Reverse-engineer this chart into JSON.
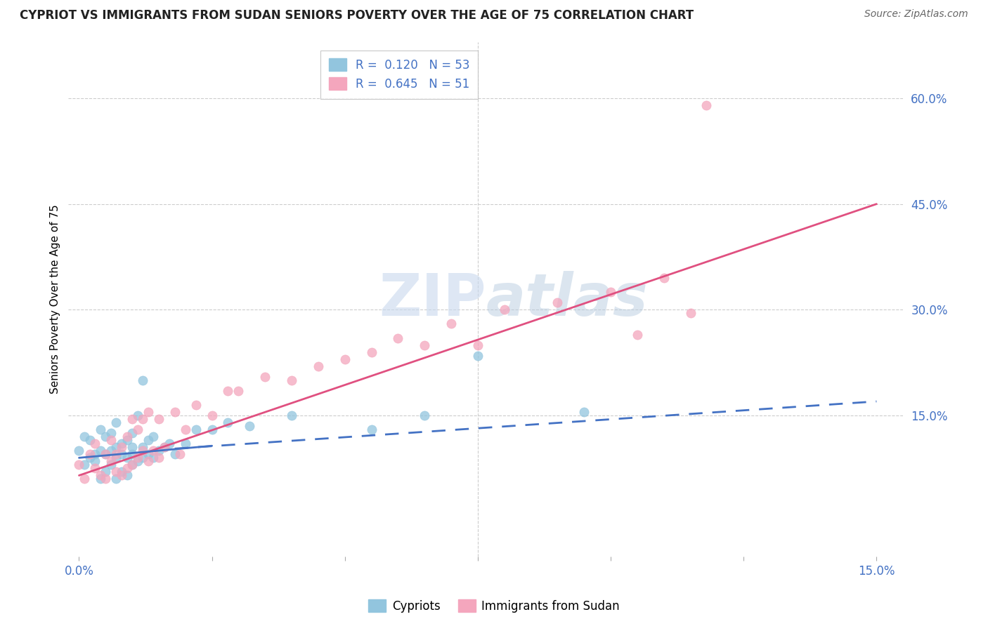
{
  "title": "CYPRIOT VS IMMIGRANTS FROM SUDAN SENIORS POVERTY OVER THE AGE OF 75 CORRELATION CHART",
  "source": "Source: ZipAtlas.com",
  "ylabel": "Seniors Poverty Over the Age of 75",
  "x_min": 0.0,
  "x_max": 0.15,
  "y_min": -0.05,
  "y_max": 0.68,
  "y_ticks_right": [
    0.15,
    0.3,
    0.45,
    0.6
  ],
  "y_tick_labels_right": [
    "15.0%",
    "30.0%",
    "45.0%",
    "60.0%"
  ],
  "x_tick_pos": [
    0.0,
    0.025,
    0.05,
    0.075,
    0.1,
    0.125,
    0.15
  ],
  "x_tick_labels": [
    "0.0%",
    "",
    "",
    "",
    "",
    "",
    "15.0%"
  ],
  "legend_r1": "R =  0.120   N = 53",
  "legend_r2": "R =  0.645   N = 51",
  "cypriot_color": "#92c5de",
  "sudan_color": "#f4a6bd",
  "trend_cypriot_color": "#4472C4",
  "trend_sudan_color": "#e05080",
  "watermark": "ZIPatlas",
  "grid_color": "#cccccc",
  "cypriot_scatter_x": [
    0.0,
    0.001,
    0.001,
    0.002,
    0.002,
    0.003,
    0.003,
    0.004,
    0.004,
    0.004,
    0.005,
    0.005,
    0.005,
    0.006,
    0.006,
    0.006,
    0.007,
    0.007,
    0.007,
    0.007,
    0.008,
    0.008,
    0.008,
    0.009,
    0.009,
    0.009,
    0.01,
    0.01,
    0.01,
    0.01,
    0.011,
    0.011,
    0.012,
    0.012,
    0.012,
    0.013,
    0.013,
    0.014,
    0.014,
    0.015,
    0.016,
    0.017,
    0.018,
    0.02,
    0.022,
    0.025,
    0.028,
    0.032,
    0.04,
    0.055,
    0.065,
    0.075,
    0.095
  ],
  "cypriot_scatter_y": [
    0.1,
    0.08,
    0.12,
    0.09,
    0.115,
    0.085,
    0.095,
    0.06,
    0.1,
    0.13,
    0.07,
    0.095,
    0.12,
    0.08,
    0.1,
    0.125,
    0.06,
    0.09,
    0.105,
    0.14,
    0.07,
    0.095,
    0.11,
    0.065,
    0.09,
    0.115,
    0.08,
    0.095,
    0.105,
    0.125,
    0.085,
    0.15,
    0.09,
    0.105,
    0.2,
    0.095,
    0.115,
    0.09,
    0.12,
    0.1,
    0.105,
    0.11,
    0.095,
    0.11,
    0.13,
    0.13,
    0.14,
    0.135,
    0.15,
    0.13,
    0.15,
    0.235,
    0.155
  ],
  "sudan_scatter_x": [
    0.0,
    0.001,
    0.002,
    0.003,
    0.003,
    0.004,
    0.005,
    0.005,
    0.006,
    0.006,
    0.007,
    0.007,
    0.008,
    0.008,
    0.009,
    0.009,
    0.01,
    0.01,
    0.011,
    0.011,
    0.012,
    0.012,
    0.013,
    0.013,
    0.014,
    0.015,
    0.015,
    0.016,
    0.018,
    0.019,
    0.02,
    0.022,
    0.025,
    0.028,
    0.03,
    0.035,
    0.04,
    0.045,
    0.05,
    0.055,
    0.06,
    0.065,
    0.07,
    0.075,
    0.08,
    0.09,
    0.1,
    0.105,
    0.11,
    0.115,
    0.118
  ],
  "sudan_scatter_y": [
    0.08,
    0.06,
    0.095,
    0.075,
    0.11,
    0.065,
    0.06,
    0.095,
    0.085,
    0.115,
    0.07,
    0.095,
    0.065,
    0.105,
    0.075,
    0.12,
    0.08,
    0.145,
    0.09,
    0.13,
    0.1,
    0.145,
    0.085,
    0.155,
    0.1,
    0.09,
    0.145,
    0.105,
    0.155,
    0.095,
    0.13,
    0.165,
    0.15,
    0.185,
    0.185,
    0.205,
    0.2,
    0.22,
    0.23,
    0.24,
    0.26,
    0.25,
    0.28,
    0.25,
    0.3,
    0.31,
    0.325,
    0.265,
    0.345,
    0.295,
    0.59
  ],
  "cyp_trend_x": [
    0.0,
    0.15
  ],
  "cyp_trend_y": [
    0.09,
    0.17
  ],
  "sud_trend_x": [
    0.0,
    0.15
  ],
  "sud_trend_y": [
    0.065,
    0.45
  ]
}
